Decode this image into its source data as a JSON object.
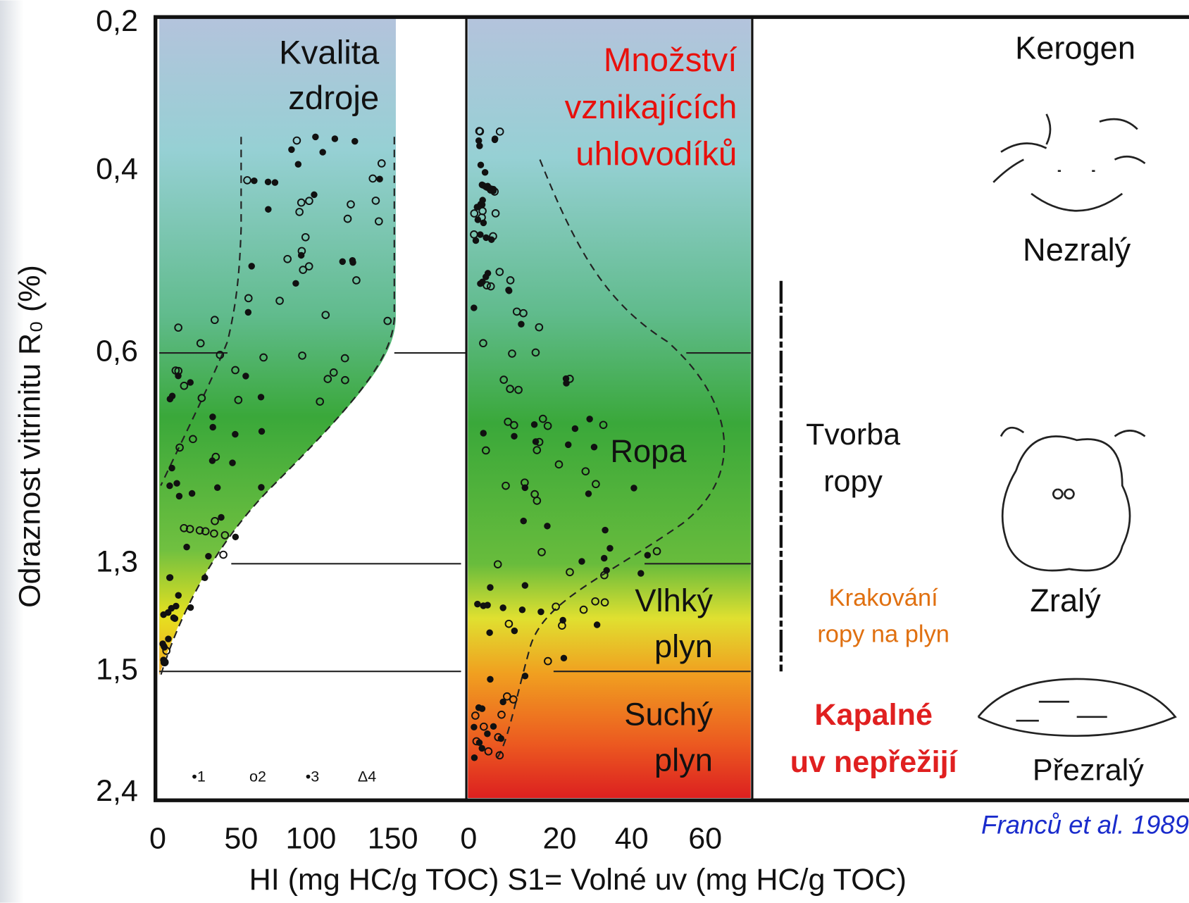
{
  "panel_left": {
    "title": [
      "Kvalita",
      "zdroje"
    ]
  },
  "panel_middle": {
    "title": [
      "Množství",
      "vznikajících",
      "uhlovodíků"
    ],
    "zones": {
      "oil": "Ropa",
      "wet_gas": [
        "Vlhký",
        "plyn"
      ],
      "dry_gas": [
        "Suchý",
        "plyn"
      ]
    }
  },
  "panel_right": {
    "kerogen": "Kerogen",
    "immature": "Nezralý",
    "oil_formation": [
      "Tvorba",
      "ropy"
    ],
    "cracking": [
      "Krakování",
      "ropy na plyn"
    ],
    "liquids": [
      "Kapalné",
      "uv nepřežijí"
    ],
    "mature": "Zralý",
    "overmature": "Přezralý",
    "source": "Franců et al. 1989"
  },
  "y_axis": {
    "title": "Odraznost vitrinitu   R₀ (%)",
    "ticks": [
      "0,2",
      "0,4",
      "0,6",
      "1,3",
      "1,5",
      "2,4"
    ]
  },
  "x_axis": {
    "title": "HI (mg HC/g TOC) S1= Volné uv (mg HC/g TOC)",
    "ticks_hi": [
      "0",
      "50",
      "100",
      "150"
    ],
    "ticks_s1": [
      "0",
      "20",
      "40",
      "60"
    ]
  },
  "legend": [
    "•1",
    "o2",
    "•3",
    "Δ4"
  ]
}
